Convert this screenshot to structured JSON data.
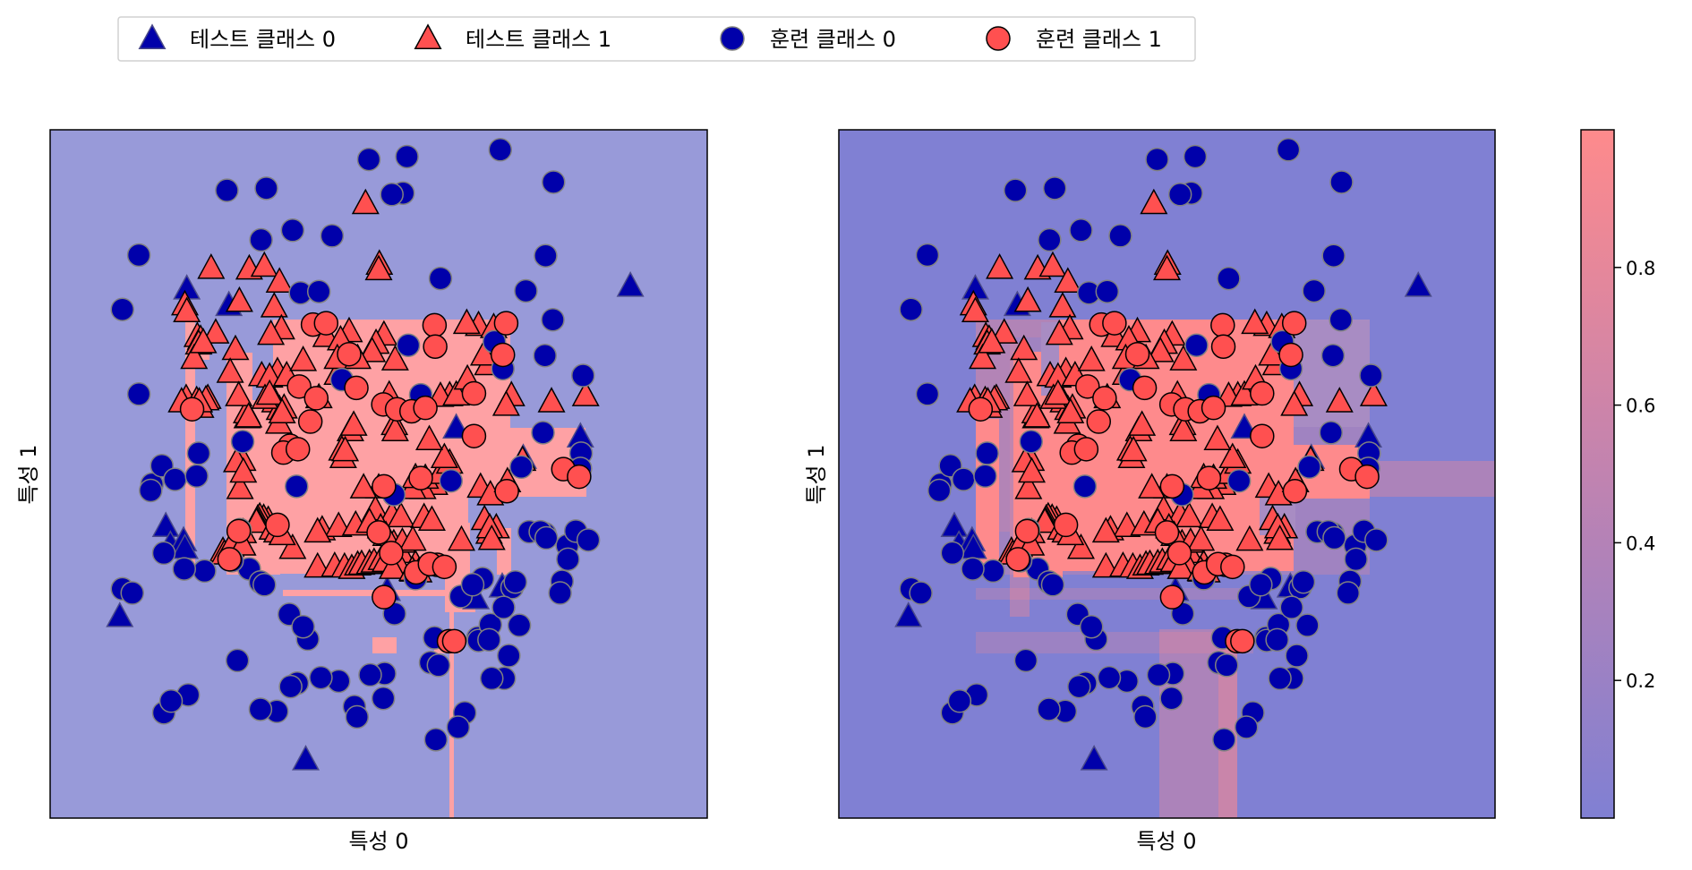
{
  "chart_data": {
    "type": "scatter",
    "legend": {
      "placement": "top-left",
      "entries": [
        {
          "label": "테스트 클래스 0",
          "marker": "triangle",
          "color": "#0000aa"
        },
        {
          "label": "테스트 클래스 1",
          "marker": "triangle",
          "color": "#ff5050"
        },
        {
          "label": "훈련 클래스 0",
          "marker": "circle",
          "color": "#0000aa"
        },
        {
          "label": "훈련 클래스 1",
          "marker": "circle",
          "color": "#ff5050"
        }
      ]
    },
    "colors": {
      "class0": "#0000aa",
      "class1": "#ff5050",
      "class0_edge": "#808080",
      "class1_edge": "#000000",
      "region0": "#989ad9",
      "region1": "#fea1a4",
      "prob_low": "#8080d3",
      "prob_high": "#fe8a8c"
    },
    "xlim": [
      0,
      100
    ],
    "ylim": [
      0,
      100
    ],
    "panels": [
      {
        "xlabel": "특성 0",
        "ylabel": "특성 1",
        "style": "discrete"
      },
      {
        "xlabel": "특성 0",
        "ylabel": "특성 1",
        "style": "probability"
      }
    ],
    "colorbar": {
      "min": 0.0,
      "max": 1.0,
      "ticks": [
        0.2,
        0.4,
        0.6,
        0.8
      ],
      "tick_labels": [
        "0.2",
        "0.4",
        "0.6",
        "0.8"
      ]
    },
    "train_class0": [
      [
        13.5,
        81.8
      ],
      [
        11.0,
        73.9
      ],
      [
        13.5,
        61.6
      ],
      [
        26.9,
        91.2
      ],
      [
        36.9,
        85.4
      ],
      [
        53.7,
        90.8
      ],
      [
        54.3,
        96.1
      ],
      [
        68.5,
        97.1
      ],
      [
        76.6,
        92.4
      ],
      [
        75.4,
        81.7
      ],
      [
        72.4,
        76.6
      ],
      [
        59.4,
        78.4
      ],
      [
        76.5,
        72.4
      ],
      [
        68.9,
        65.3
      ],
      [
        56.4,
        61.5
      ],
      [
        81.1,
        64.3
      ],
      [
        75.0,
        56.0
      ],
      [
        71.7,
        51.0
      ],
      [
        61.0,
        49.0
      ],
      [
        52.3,
        47.0
      ],
      [
        38.1,
        76.3
      ],
      [
        40.9,
        76.5
      ],
      [
        42.9,
        84.6
      ],
      [
        37.5,
        48.2
      ],
      [
        28.9,
        41.9
      ],
      [
        15.5,
        48.5
      ],
      [
        15.3,
        47.6
      ],
      [
        17.0,
        51.2
      ],
      [
        19.0,
        49.2
      ],
      [
        17.3,
        38.5
      ],
      [
        11.0,
        33.3
      ],
      [
        12.5,
        32.7
      ],
      [
        23.5,
        35.9
      ],
      [
        20.4,
        36.2
      ],
      [
        30.3,
        36.2
      ],
      [
        32.0,
        34.3
      ],
      [
        32.6,
        33.9
      ],
      [
        36.4,
        29.6
      ],
      [
        52.4,
        29.7
      ],
      [
        65.1,
        26.2
      ],
      [
        65.2,
        25.8
      ],
      [
        58.5,
        26.2
      ],
      [
        50.9,
        21.0
      ],
      [
        48.7,
        20.8
      ],
      [
        43.9,
        19.9
      ],
      [
        46.3,
        16.2
      ],
      [
        70.3,
        33.5
      ],
      [
        69.8,
        23.6
      ],
      [
        69.1,
        20.3
      ],
      [
        67.2,
        20.3
      ],
      [
        41.2,
        20.4
      ],
      [
        34.5,
        15.5
      ],
      [
        39.2,
        26.0
      ],
      [
        27.7,
        37.4
      ],
      [
        63.1,
        15.3
      ],
      [
        62.1,
        13.2
      ],
      [
        58.7,
        11.4
      ],
      [
        75.3,
        67.2
      ],
      [
        67.6,
        69.2
      ],
      [
        54.5,
        68.7
      ],
      [
        29.3,
        54.7
      ],
      [
        22.6,
        53.0
      ],
      [
        22.3,
        49.7
      ],
      [
        44.4,
        63.7
      ],
      [
        32.1,
        84.0
      ],
      [
        32.9,
        91.5
      ],
      [
        52.0,
        90.6
      ],
      [
        48.5,
        95.7
      ],
      [
        38.5,
        27.8
      ],
      [
        37.6,
        19.6
      ],
      [
        36.6,
        19.1
      ],
      [
        21.0,
        17.9
      ],
      [
        32.0,
        15.8
      ],
      [
        17.3,
        15.3
      ],
      [
        18.4,
        17.0
      ],
      [
        28.5,
        22.9
      ],
      [
        67.0,
        28.1
      ],
      [
        66.8,
        25.9
      ],
      [
        78.7,
        39.6
      ],
      [
        78.8,
        37.6
      ],
      [
        57.9,
        22.6
      ],
      [
        59.1,
        22.2
      ],
      [
        50.7,
        17.4
      ],
      [
        46.7,
        14.7
      ],
      [
        71.4,
        28.0
      ],
      [
        69.0,
        30.6
      ],
      [
        62.5,
        32.2
      ],
      [
        55.6,
        34.8
      ],
      [
        72.9,
        41.6
      ],
      [
        80.0,
        41.7
      ],
      [
        81.9,
        40.4
      ],
      [
        80.8,
        53.0
      ],
      [
        79.4,
        50.5
      ],
      [
        80.7,
        50.8
      ],
      [
        77.9,
        34.4
      ],
      [
        77.6,
        32.7
      ],
      [
        70.8,
        34.3
      ],
      [
        75.3,
        41.3
      ],
      [
        74.6,
        41.6
      ],
      [
        75.5,
        40.7
      ],
      [
        65.8,
        34.8
      ],
      [
        64.3,
        33.9
      ]
    ],
    "train_class1": [
      [
        40.0,
        71.7
      ],
      [
        42.0,
        71.9
      ],
      [
        45.5,
        67.4
      ],
      [
        58.5,
        71.6
      ],
      [
        58.6,
        68.5
      ],
      [
        69.4,
        71.9
      ],
      [
        68.9,
        67.3
      ],
      [
        37.9,
        62.7
      ],
      [
        40.5,
        61.0
      ],
      [
        46.6,
        62.5
      ],
      [
        50.7,
        60.1
      ],
      [
        52.8,
        59.4
      ],
      [
        55.0,
        59.1
      ],
      [
        57.1,
        59.6
      ],
      [
        64.5,
        61.7
      ],
      [
        21.6,
        59.4
      ],
      [
        39.6,
        57.6
      ],
      [
        36.5,
        54.1
      ],
      [
        35.5,
        53.1
      ],
      [
        37.7,
        53.6
      ],
      [
        64.5,
        55.5
      ],
      [
        56.4,
        49.4
      ],
      [
        50.8,
        48.2
      ],
      [
        69.5,
        47.5
      ],
      [
        78.1,
        50.7
      ],
      [
        80.5,
        49.6
      ],
      [
        50.0,
        41.5
      ],
      [
        28.7,
        41.7
      ],
      [
        27.3,
        37.6
      ],
      [
        34.6,
        42.6
      ],
      [
        51.9,
        38.5
      ],
      [
        55.7,
        35.7
      ],
      [
        58.9,
        36.8
      ],
      [
        57.8,
        36.9
      ],
      [
        60.0,
        36.5
      ],
      [
        50.8,
        32.1
      ],
      [
        60.7,
        25.7
      ],
      [
        61.5,
        25.7
      ]
    ],
    "test_class0": [
      [
        20.8,
        76.9
      ],
      [
        27.2,
        74.5
      ],
      [
        61.8,
        56.7
      ],
      [
        72.0,
        52.3
      ],
      [
        80.7,
        55.4
      ],
      [
        88.3,
        77.3
      ],
      [
        17.6,
        42.4
      ],
      [
        18.3,
        39.7
      ],
      [
        20.3,
        40.3
      ],
      [
        20.5,
        39.2
      ],
      [
        10.6,
        29.3
      ],
      [
        38.9,
        8.5
      ],
      [
        68.8,
        33.6
      ],
      [
        51.3,
        33.1
      ],
      [
        64.8,
        31.9
      ]
    ],
    "test_class1": [
      [
        24.5,
        79.9
      ],
      [
        30.3,
        79.8
      ],
      [
        32.6,
        80.2
      ],
      [
        50.1,
        80.5
      ],
      [
        50.0,
        79.7
      ],
      [
        48.0,
        89.3
      ],
      [
        20.5,
        74.6
      ],
      [
        20.8,
        73.6
      ],
      [
        28.8,
        75.1
      ],
      [
        34.9,
        77.9
      ],
      [
        34.1,
        74.3
      ],
      [
        25.2,
        70.5
      ],
      [
        42.0,
        70.0
      ],
      [
        45.5,
        70.7
      ],
      [
        50.8,
        70.2
      ],
      [
        65.2,
        71.6
      ],
      [
        67.5,
        71.3
      ],
      [
        63.4,
        71.9
      ],
      [
        22.4,
        70.0
      ],
      [
        22.9,
        69.6
      ],
      [
        22.6,
        68.9
      ],
      [
        28.2,
        68.1
      ],
      [
        35.2,
        71.1
      ],
      [
        33.6,
        70.3
      ],
      [
        44.2,
        69.5
      ],
      [
        49.6,
        69.0
      ],
      [
        49.0,
        67.8
      ],
      [
        60.8,
        61.4
      ],
      [
        59.4,
        61.3
      ],
      [
        40.9,
        61.1
      ],
      [
        20.7,
        61.0
      ],
      [
        20.0,
        60.5
      ],
      [
        24.0,
        61.0
      ],
      [
        34.2,
        60.5
      ],
      [
        51.6,
        61.5
      ],
      [
        61.8,
        61.5
      ],
      [
        70.2,
        61.4
      ],
      [
        69.4,
        60.0
      ],
      [
        63.5,
        63.8
      ],
      [
        43.7,
        64.5
      ],
      [
        34.6,
        64.9
      ],
      [
        27.4,
        64.8
      ],
      [
        34.9,
        59.4
      ],
      [
        35.6,
        59.6
      ],
      [
        76.3,
        60.5
      ],
      [
        81.5,
        61.4
      ],
      [
        21.9,
        66.8
      ],
      [
        23.3,
        69.1
      ],
      [
        32.2,
        64.3
      ],
      [
        33.4,
        64.1
      ],
      [
        36.0,
        64.3
      ],
      [
        66.6,
        65.9
      ],
      [
        66.0,
        67.3
      ],
      [
        38.5,
        66.5
      ],
      [
        43.7,
        66.8
      ],
      [
        46.8,
        66.8
      ],
      [
        52.5,
        66.6
      ],
      [
        30.0,
        58.2
      ],
      [
        29.9,
        58.9
      ],
      [
        28.7,
        61.4
      ],
      [
        22.3,
        60.7
      ],
      [
        58.5,
        48.5
      ],
      [
        56.7,
        47.9
      ],
      [
        57.1,
        49.4
      ],
      [
        59.4,
        50.1
      ],
      [
        60.8,
        51.6
      ],
      [
        60.0,
        52.4
      ],
      [
        57.7,
        55.0
      ],
      [
        23.7,
        60.8
      ],
      [
        22.9,
        59.7
      ],
      [
        22.7,
        60.5
      ],
      [
        32.7,
        61.0
      ],
      [
        33.4,
        61.6
      ],
      [
        34.8,
        57.4
      ],
      [
        35.3,
        58.9
      ],
      [
        45.7,
        56.3
      ],
      [
        46.2,
        57.1
      ],
      [
        52.4,
        57.2
      ],
      [
        52.5,
        56.3
      ],
      [
        50.0,
        48.0
      ],
      [
        47.7,
        48.0
      ],
      [
        55.2,
        47.9
      ],
      [
        55.6,
        49.5
      ],
      [
        65.5,
        48.1
      ],
      [
        67.0,
        47.0
      ],
      [
        69.6,
        48.9
      ],
      [
        71.9,
        52.0
      ],
      [
        30.2,
        58.3
      ],
      [
        29.3,
        52.0
      ],
      [
        28.4,
        51.8
      ],
      [
        28.9,
        47.9
      ],
      [
        29.4,
        50.3
      ],
      [
        41.4,
        41.9
      ],
      [
        49.5,
        44.8
      ],
      [
        52.0,
        44.0
      ],
      [
        53.4,
        43.8
      ],
      [
        56.9,
        43.7
      ],
      [
        58.1,
        43.3
      ],
      [
        44.6,
        52.4
      ],
      [
        44.4,
        53.5
      ],
      [
        44.9,
        53.4
      ],
      [
        33.2,
        43.3
      ],
      [
        32.5,
        43.6
      ],
      [
        31.9,
        43.8
      ],
      [
        31.6,
        43.5
      ],
      [
        31.5,
        43.2
      ],
      [
        31.4,
        43.0
      ],
      [
        26.3,
        38.8
      ],
      [
        26.5,
        38.4
      ],
      [
        28.2,
        40.5
      ],
      [
        36.9,
        39.2
      ],
      [
        40.7,
        36.5
      ],
      [
        43.9,
        42.4
      ],
      [
        46.5,
        42.6
      ],
      [
        52.3,
        39.9
      ],
      [
        53.4,
        38.6
      ],
      [
        53.2,
        36.6
      ],
      [
        55.6,
        36.9
      ],
      [
        56.1,
        35.8
      ],
      [
        55.2,
        35.9
      ],
      [
        62.6,
        40.4
      ],
      [
        66.8,
        41.4
      ],
      [
        67.9,
        42.2
      ],
      [
        40.7,
        41.6
      ],
      [
        29.4,
        41.5
      ],
      [
        28.0,
        40.3
      ],
      [
        27.5,
        39.5
      ],
      [
        29.3,
        39.7
      ],
      [
        33.8,
        42.0
      ],
      [
        34.5,
        41.6
      ],
      [
        35.3,
        41.2
      ],
      [
        48.6,
        43.0
      ],
      [
        50.3,
        42.2
      ],
      [
        51.1,
        41.1
      ],
      [
        53.6,
        40.1
      ],
      [
        55.2,
        40.4
      ],
      [
        66.1,
        43.4
      ],
      [
        66.9,
        42.2
      ],
      [
        67.2,
        40.5
      ],
      [
        43.3,
        36.6
      ],
      [
        44.8,
        36.5
      ],
      [
        45.9,
        36.3
      ],
      [
        46.8,
        36.8
      ],
      [
        47.4,
        36.9
      ],
      [
        48.6,
        37.0
      ],
      [
        49.3,
        37.2
      ],
      [
        50.4,
        37.6
      ],
      [
        51.0,
        37.3
      ],
      [
        52.1,
        36.3
      ],
      [
        55.1,
        36.0
      ]
    ]
  }
}
